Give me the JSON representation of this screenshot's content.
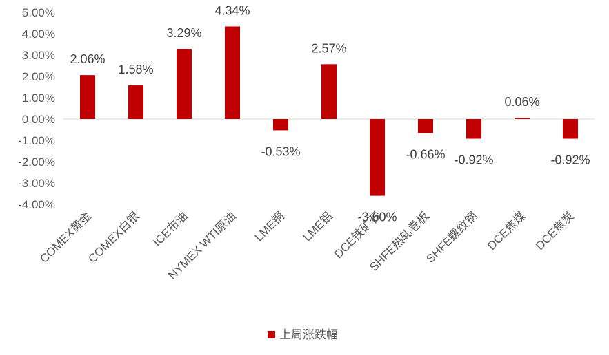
{
  "chart_data": {
    "type": "bar",
    "categories": [
      "COMEX黄金",
      "COMEX白银",
      "ICE布油",
      "NYMEX WTI原油",
      "LME铜",
      "LME铝",
      "DCE铁矿石",
      "SHFE热轧卷板",
      "SHFE螺纹钢",
      "DCE焦煤",
      "DCE焦炭"
    ],
    "series": [
      {
        "name": "上周涨跌幅",
        "values": [
          2.06,
          1.58,
          3.29,
          4.34,
          -0.53,
          2.57,
          -3.6,
          -0.66,
          -0.92,
          0.06,
          -0.92
        ],
        "labels": [
          "2.06%",
          "1.58%",
          "3.29%",
          "4.34%",
          "-0.53%",
          "2.57%",
          "-3.60%",
          "-0.66%",
          "-0.92%",
          "0.06%",
          "-0.92%"
        ]
      }
    ],
    "yticks": [
      5,
      4,
      3,
      2,
      1,
      0,
      -1,
      -2,
      -3,
      -4
    ],
    "ytick_labels": [
      "5.00%",
      "4.00%",
      "3.00%",
      "2.00%",
      "1.00%",
      "0.00%",
      "-1.00%",
      "-2.00%",
      "-3.00%",
      "-4.00%"
    ],
    "ylim": [
      -4,
      5
    ],
    "grid": false,
    "legend": "bottom",
    "colors": {
      "bar": "#C00000",
      "axis": "#D9D9D9",
      "text": "#595959"
    }
  }
}
